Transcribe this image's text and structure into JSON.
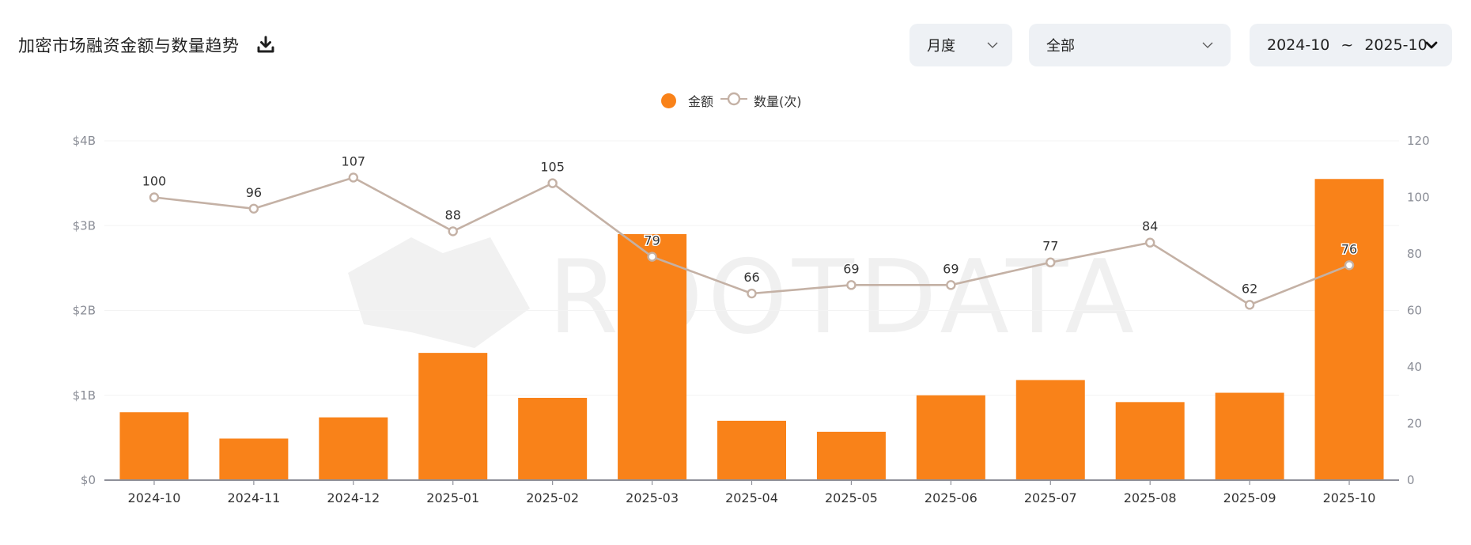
{
  "header": {
    "title": "加密市场融资金额与数量趋势",
    "download_icon": "download-icon"
  },
  "filters": {
    "period": {
      "value": "月度",
      "icon": "chevron-down-icon"
    },
    "category": {
      "value": "全部",
      "icon": "chevron-down-icon"
    },
    "range": {
      "start": "2024-10",
      "separator": "~",
      "end": "2025-10",
      "icon": "chevron-down-bold-icon"
    }
  },
  "legend": {
    "amount": "金额",
    "count": "数量(次)"
  },
  "watermark": "ROOTDATA",
  "colors": {
    "bar": "#f98219",
    "line": "#c4b1a5",
    "axis": "#8a8d96",
    "grid": "#f3f3f3",
    "select_bg": "#eef1f5"
  },
  "chart_data": {
    "type": "bar",
    "title": "加密市场融资金额与数量趋势",
    "categories": [
      "2024-10",
      "2024-11",
      "2024-12",
      "2025-01",
      "2025-02",
      "2025-03",
      "2025-04",
      "2025-05",
      "2025-06",
      "2025-07",
      "2025-08",
      "2025-09",
      "2025-10"
    ],
    "series": [
      {
        "name": "金额",
        "type": "bar",
        "axis": "left",
        "unit": "USD billions",
        "values": [
          0.8,
          0.49,
          0.74,
          1.5,
          0.97,
          2.9,
          0.7,
          0.57,
          1.0,
          1.18,
          0.92,
          1.03,
          3.55
        ]
      },
      {
        "name": "数量(次)",
        "type": "line",
        "axis": "right",
        "values": [
          100,
          96,
          107,
          88,
          105,
          79,
          66,
          69,
          69,
          77,
          84,
          62,
          76
        ]
      }
    ],
    "left_axis": {
      "ticks": [
        "$0",
        "$1B",
        "$2B",
        "$3B",
        "$4B"
      ],
      "ylim": [
        0,
        4
      ]
    },
    "right_axis": {
      "ticks": [
        "0",
        "20",
        "40",
        "60",
        "80",
        "100",
        "120"
      ],
      "ylim": [
        0,
        120
      ]
    },
    "xlabel": "",
    "ylabel": "",
    "grid": true,
    "legend_position": "top-center"
  }
}
